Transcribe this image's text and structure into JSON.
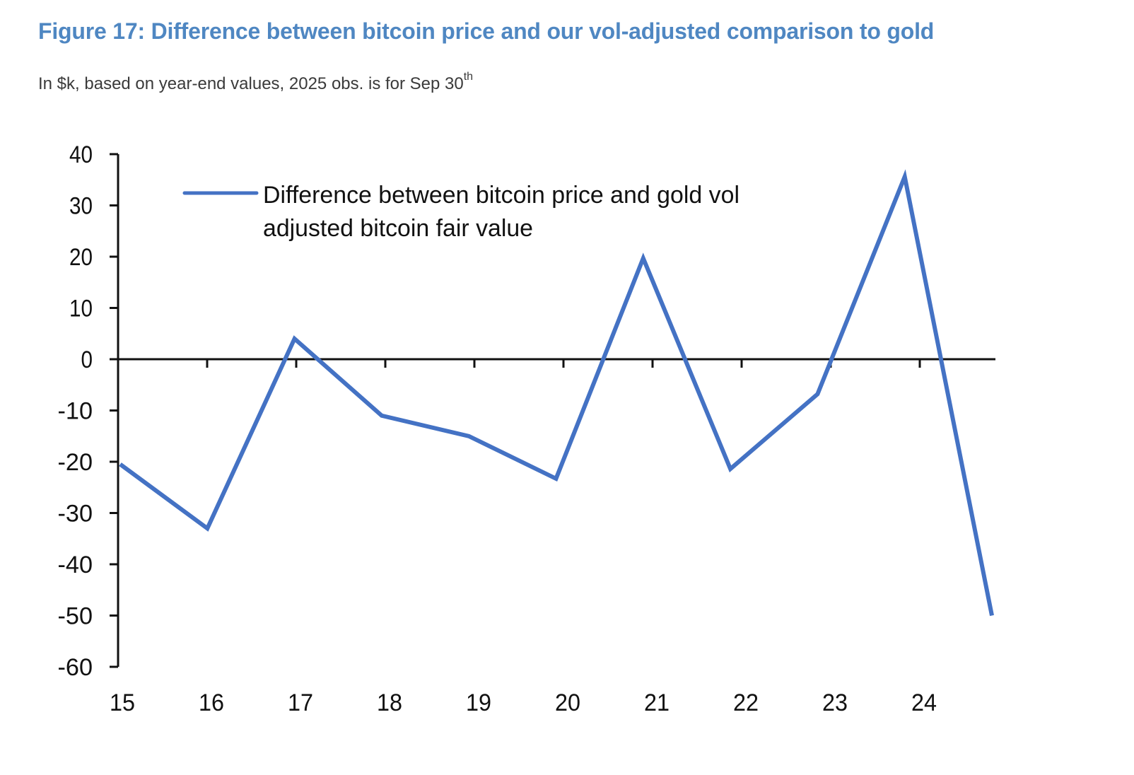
{
  "figure": {
    "title": "Figure 17: Difference between bitcoin price and our vol-adjusted comparison to gold",
    "subtitle_main": "In $k, based on year-end values, 2025 obs. is for Sep 30",
    "subtitle_sup": "th"
  },
  "chart_data": {
    "type": "line",
    "title": "Figure 17: Difference between bitcoin price and our vol-adjusted comparison to gold",
    "subtitle": "In $k, based on year-end values, 2025 obs. is for Sep 30th",
    "xlabel": "",
    "ylabel": "",
    "x": [
      "15",
      "16",
      "17",
      "18",
      "19",
      "20",
      "21",
      "22",
      "23",
      "24",
      "25"
    ],
    "x_tick_labels": [
      "15",
      "16",
      "17",
      "18",
      "19",
      "20",
      "21",
      "22",
      "23",
      "24"
    ],
    "series": [
      {
        "name": "Difference between bitcoin price and gold vol adjusted bitcoin fair value",
        "legend_lines": [
          "Difference between bitcoin price and gold vol",
          "adjusted bitcoin fair value"
        ],
        "color": "#4472c4",
        "values": [
          -20.5,
          -33,
          4,
          -11,
          -15,
          -23.3,
          19.7,
          -21.4,
          -6.8,
          35.6,
          -50
        ]
      }
    ],
    "ylim": [
      -60,
      40
    ],
    "y_ticks": [
      40,
      30,
      20,
      10,
      0,
      -10,
      -20,
      -30,
      -40,
      -50,
      -60
    ],
    "grid": false,
    "legend_position": "top-left",
    "zero_line": true
  },
  "colors": {
    "title": "#4f87c2",
    "subtitle": "#3a3a3a",
    "axis": "#111111",
    "series": "#4472c4"
  }
}
